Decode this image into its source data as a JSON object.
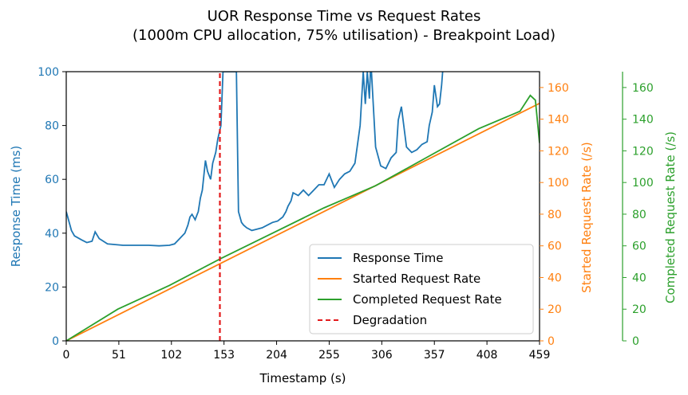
{
  "chart_data": {
    "type": "line",
    "title": "UOR Response Time vs Request Rates",
    "subtitle": "(1000m CPU allocation, 75% utilisation) - Breakpoint Load)",
    "xlabel": "Timestamp (s)",
    "xlim": [
      0,
      459
    ],
    "xticks": [
      0,
      51,
      102,
      153,
      204,
      255,
      306,
      357,
      408,
      459
    ],
    "axes": {
      "left": {
        "label": "Response Time (ms)",
        "ylim": [
          0,
          100
        ],
        "ticks": [
          0,
          20,
          40,
          60,
          80,
          100
        ],
        "color": "#1f77b4"
      },
      "right": {
        "label": "Started Request Rate (/s)",
        "ylim": [
          0,
          170
        ],
        "ticks": [
          0,
          20,
          40,
          60,
          80,
          100,
          120,
          140,
          160
        ],
        "color": "#ff7f0e"
      },
      "right2": {
        "label": "Completed Request Rate (/s)",
        "ylim": [
          0,
          170
        ],
        "ticks": [
          0,
          20,
          40,
          60,
          80,
          100,
          120,
          140,
          160
        ],
        "color": "#2ca02c"
      }
    },
    "legend_position": "lower-right",
    "series": [
      {
        "name": "Response Time",
        "axis": "left",
        "color": "#1f77b4",
        "x": [
          0,
          5,
          8,
          15,
          20,
          25,
          28,
          32,
          40,
          55,
          70,
          80,
          90,
          100,
          105,
          110,
          115,
          118,
          120,
          122,
          125,
          127,
          128,
          130,
          132,
          135,
          137,
          140,
          142,
          145,
          147,
          150,
          152,
          154,
          160,
          163,
          165,
          167,
          170,
          172,
          175,
          180,
          185,
          190,
          195,
          200,
          205,
          210,
          213,
          215,
          218,
          220,
          225,
          230,
          235,
          240,
          245,
          250,
          255,
          260,
          265,
          270,
          275,
          280,
          285,
          288,
          290,
          292,
          294,
          295,
          296,
          300,
          305,
          310,
          315,
          320,
          322,
          325,
          330,
          335,
          340,
          345,
          350,
          352,
          355,
          357,
          360,
          362,
          364,
          365
        ],
        "y": [
          48,
          41,
          39,
          37.5,
          36.5,
          37,
          40.5,
          38,
          36,
          35.5,
          35.5,
          35.5,
          35.3,
          35.5,
          36,
          38,
          40,
          43,
          46,
          47,
          45,
          47,
          48,
          53,
          56,
          67,
          63,
          60,
          66,
          70,
          75,
          80,
          100,
          100,
          100,
          100,
          100,
          48,
          44,
          43,
          42,
          41,
          41.5,
          42,
          43,
          44,
          44.5,
          46,
          48,
          50,
          52,
          55,
          54,
          56,
          54,
          56,
          58,
          58,
          62,
          57,
          60,
          62,
          63,
          66,
          80,
          100,
          88,
          100,
          90,
          100,
          100,
          72,
          65,
          64,
          68,
          70,
          82,
          87,
          72,
          70,
          71,
          73,
          74,
          80,
          85,
          95,
          87,
          88,
          95,
          100
        ]
      },
      {
        "name": "Started Request Rate",
        "axis": "right",
        "color": "#ff7f0e",
        "x": [
          0,
          459
        ],
        "y": [
          0,
          150
        ]
      },
      {
        "name": "Completed Request Rate",
        "axis": "right2",
        "color": "#2ca02c",
        "x": [
          0,
          50,
          100,
          150,
          200,
          250,
          300,
          350,
          400,
          440,
          450,
          455,
          459
        ],
        "y": [
          0,
          20,
          35,
          52,
          68,
          84,
          98,
          116,
          134,
          145,
          155,
          152,
          125
        ]
      },
      {
        "name": "Degradation",
        "axis": "left",
        "color": "#e31a1c",
        "style": "dashed",
        "x": [
          149,
          149
        ],
        "y": [
          0,
          100
        ]
      }
    ],
    "legend": [
      "Response Time",
      "Started Request Rate",
      "Completed Request Rate",
      "Degradation"
    ]
  }
}
